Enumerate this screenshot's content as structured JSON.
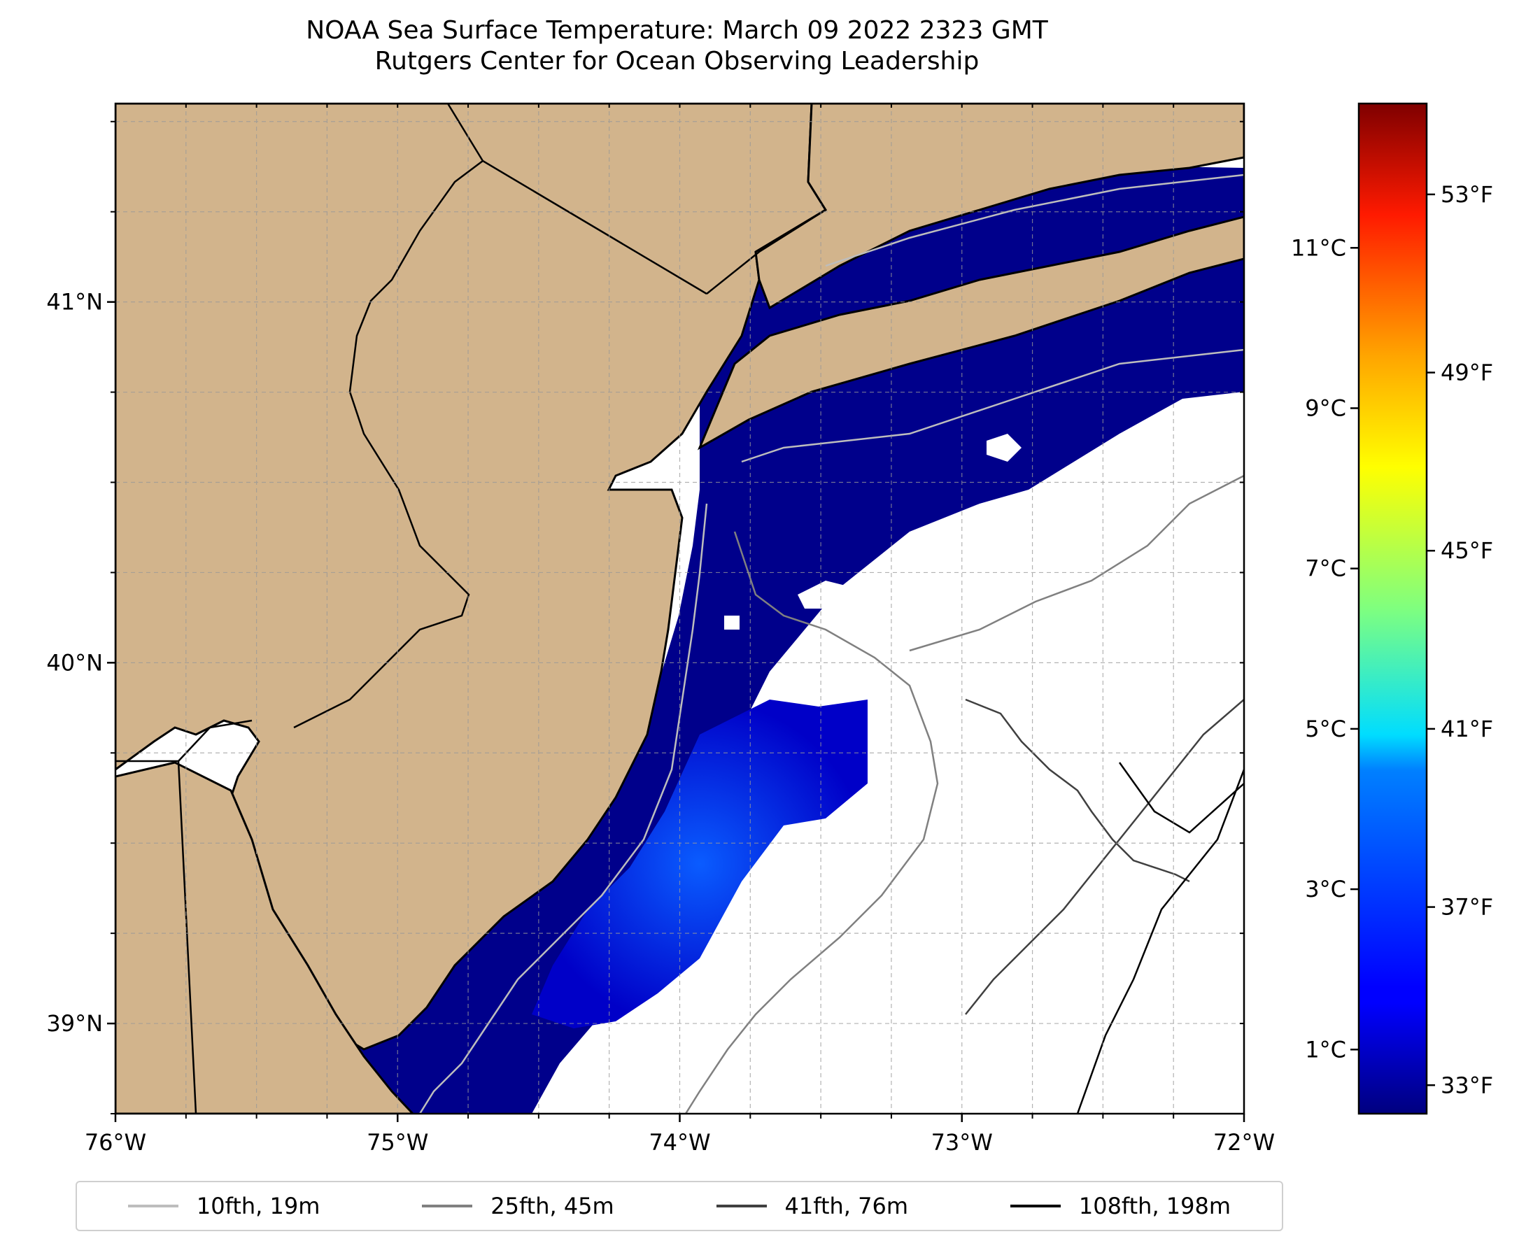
{
  "title": {
    "line1": "NOAA Sea Surface Temperature: March 09 2022 2323 GMT",
    "line2": "Rutgers Center for Ocean Observing Leadership"
  },
  "map": {
    "lon_range": [
      -76,
      -72
    ],
    "lat_range": [
      38.75,
      41.55
    ],
    "lon_ticks": [
      {
        "value": -76,
        "label": "76°W"
      },
      {
        "value": -75,
        "label": "75°W"
      },
      {
        "value": -74,
        "label": "74°W"
      },
      {
        "value": -73,
        "label": "73°W"
      },
      {
        "value": -72,
        "label": "72°W"
      }
    ],
    "lat_ticks": [
      {
        "value": 41,
        "label": "41°N"
      },
      {
        "value": 40,
        "label": "40°N"
      },
      {
        "value": 39,
        "label": "39°N"
      }
    ],
    "colors": {
      "land": "#d2b48c",
      "cold_water": "#00008b",
      "contour_10fth": "#bdbdbd",
      "contour_25fth": "#808080",
      "contour_41fth": "#404040",
      "contour_108fth": "#000000"
    }
  },
  "colorbar": {
    "colormap": "jet",
    "celsius_ticks": [
      {
        "value": 1,
        "label": "1°C"
      },
      {
        "value": 3,
        "label": "3°C"
      },
      {
        "value": 5,
        "label": "5°C"
      },
      {
        "value": 7,
        "label": "7°C"
      },
      {
        "value": 9,
        "label": "9°C"
      },
      {
        "value": 11,
        "label": "11°C"
      }
    ],
    "fahrenheit_ticks": [
      {
        "value": 33,
        "label": "33°F"
      },
      {
        "value": 37,
        "label": "37°F"
      },
      {
        "value": 41,
        "label": "41°F"
      },
      {
        "value": 45,
        "label": "45°F"
      },
      {
        "value": 49,
        "label": "49°F"
      },
      {
        "value": 53,
        "label": "53°F"
      }
    ],
    "range_celsius": [
      0.2,
      12.8
    ]
  },
  "legend": {
    "items": [
      {
        "label": "10fth, 19m",
        "color": "#bdbdbd"
      },
      {
        "label": "25fth, 45m",
        "color": "#808080"
      },
      {
        "label": "41fth, 76m",
        "color": "#404040"
      },
      {
        "label": "108fth, 198m",
        "color": "#000000"
      }
    ]
  }
}
